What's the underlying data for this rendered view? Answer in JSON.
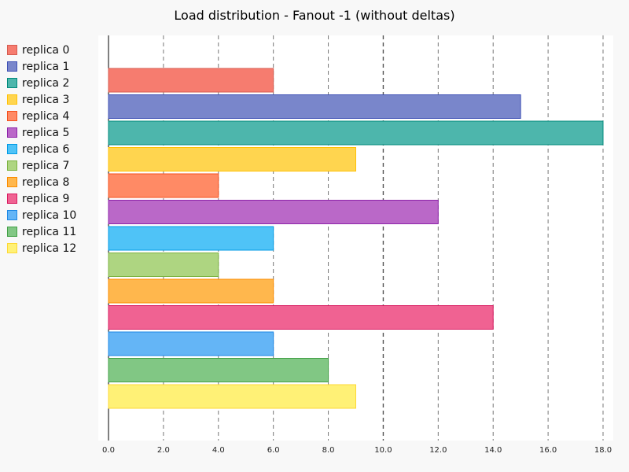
{
  "chart_data": {
    "type": "bar",
    "orientation": "horizontal",
    "title": "Load distribution - Fanout -1 (without deltas)",
    "xlabel": "",
    "ylabel": "",
    "xlim": [
      0,
      18
    ],
    "x_ticks": [
      "0.0",
      "2.0",
      "4.0",
      "6.0",
      "8.0",
      "10.0",
      "12.0",
      "14.0",
      "16.0",
      "18.0"
    ],
    "grid": "vertical dashed",
    "legend_position": "left",
    "series": [
      {
        "name": "replica 0",
        "value": 6,
        "color": "#f67c6f",
        "border": "#d65c50"
      },
      {
        "name": "replica 1",
        "value": 15,
        "color": "#7986cb",
        "border": "#3f51b5"
      },
      {
        "name": "replica 2",
        "value": 18,
        "color": "#4db6ac",
        "border": "#00897b"
      },
      {
        "name": "replica 3",
        "value": 9,
        "color": "#ffd54f",
        "border": "#ffc107"
      },
      {
        "name": "replica 4",
        "value": 4,
        "color": "#ff8a65",
        "border": "#f4511e"
      },
      {
        "name": "replica 5",
        "value": 12,
        "color": "#ba68c8",
        "border": "#8e24aa"
      },
      {
        "name": "replica 6",
        "value": 6,
        "color": "#4fc3f7",
        "border": "#039be5"
      },
      {
        "name": "replica 7",
        "value": 4,
        "color": "#aed581",
        "border": "#7cb342"
      },
      {
        "name": "replica 8",
        "value": 6,
        "color": "#ffb74d",
        "border": "#fb8c00"
      },
      {
        "name": "replica 9",
        "value": 14,
        "color": "#f06292",
        "border": "#d81b60"
      },
      {
        "name": "replica 10",
        "value": 6,
        "color": "#64b5f6",
        "border": "#1e88e5"
      },
      {
        "name": "replica 11",
        "value": 8,
        "color": "#81c784",
        "border": "#43a047"
      },
      {
        "name": "replica 12",
        "value": 9,
        "color": "#fff176",
        "border": "#fdd835"
      }
    ]
  }
}
